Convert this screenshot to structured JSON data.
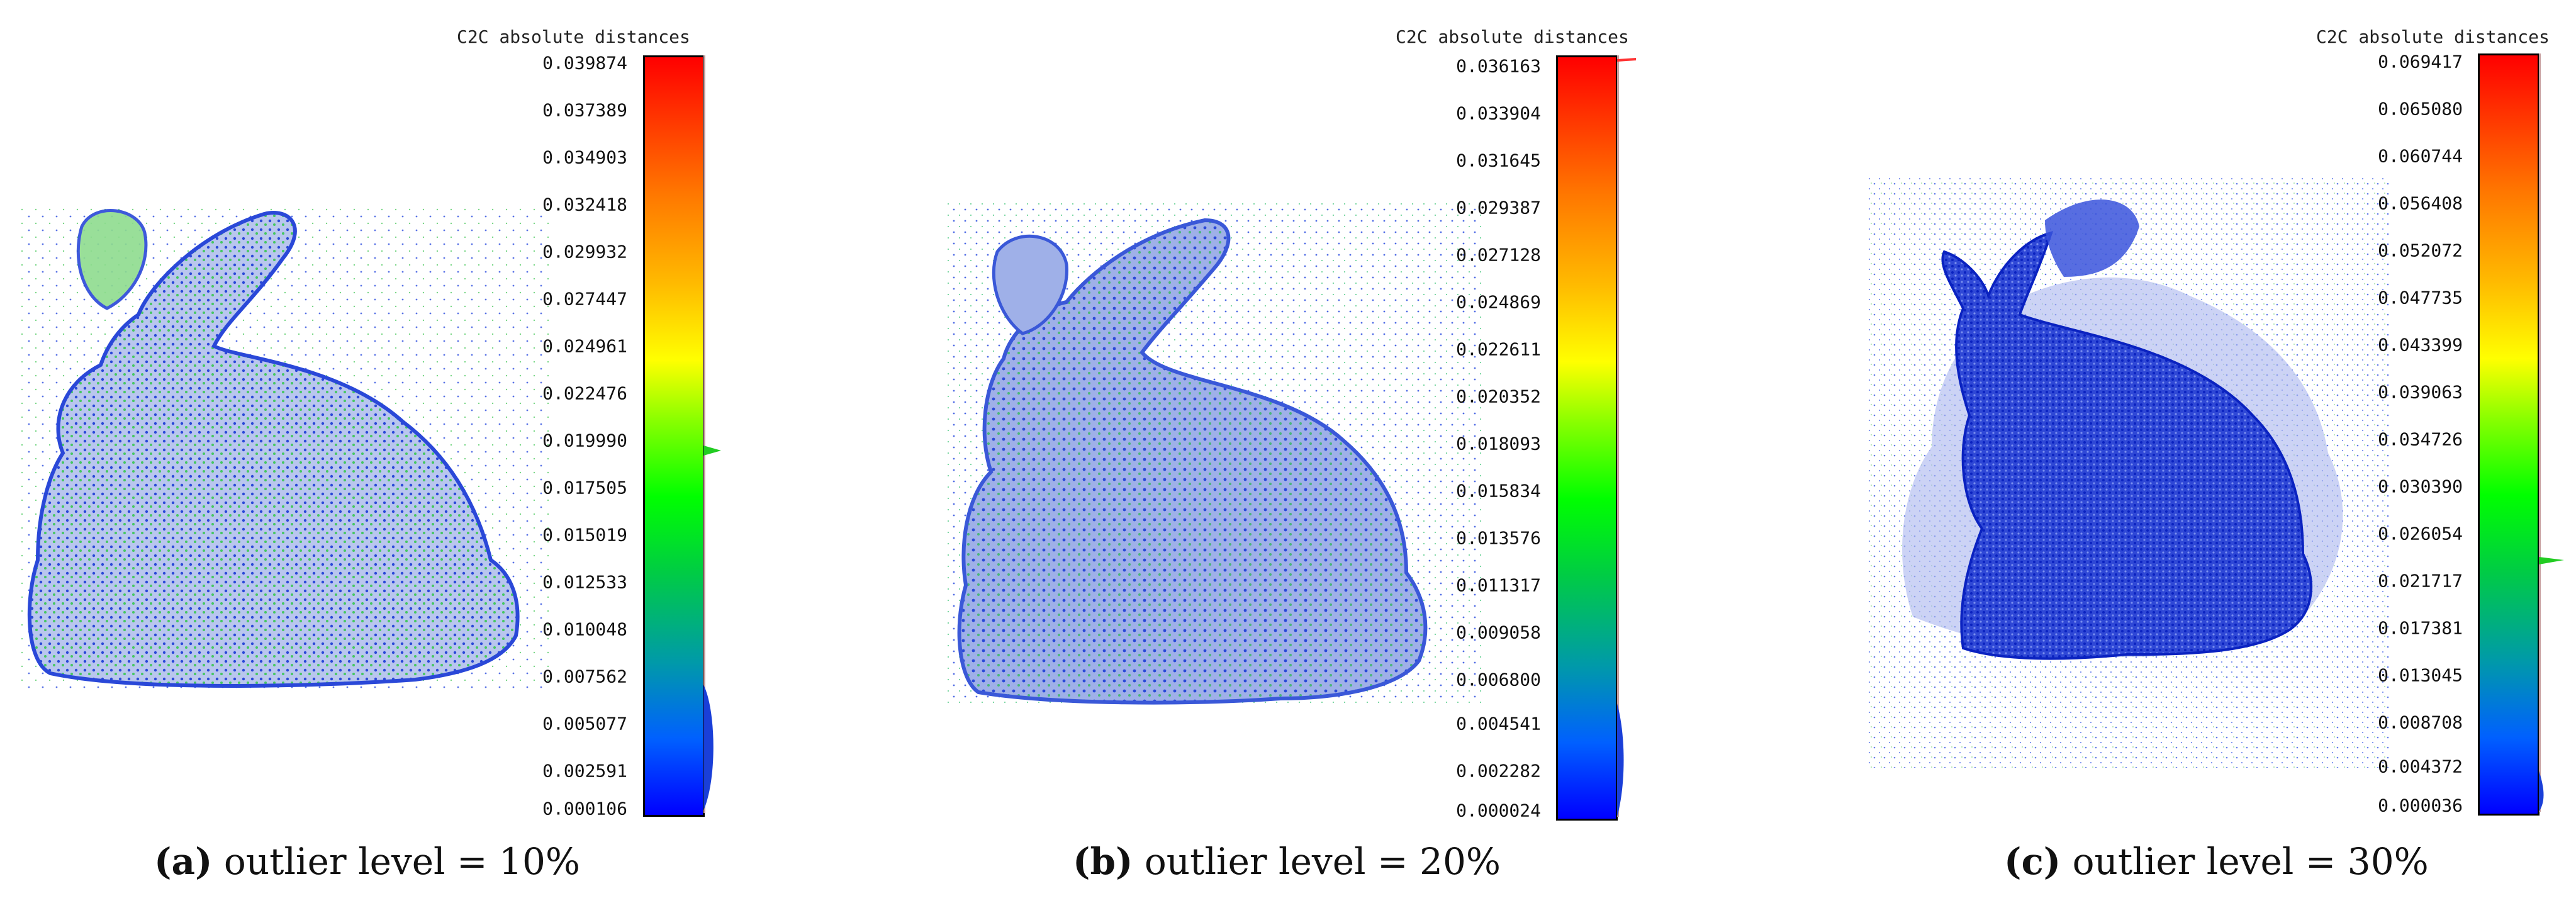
{
  "panels": [
    {
      "id": "a",
      "scale_title": "C2C absolute distances",
      "ticks": [
        "0.039874",
        "0.037389",
        "0.034903",
        "0.032418",
        "0.029932",
        "0.027447",
        "0.024961",
        "0.022476",
        "0.019990",
        "0.017505",
        "0.015019",
        "0.012533",
        "0.010048",
        "0.007562",
        "0.005077",
        "0.002591",
        "0.000106"
      ],
      "caption_letter": "(a)",
      "caption_text": " outlier level = 10%",
      "outlier_level_percent": 10,
      "hist_peak_color": "#22cc22"
    },
    {
      "id": "b",
      "scale_title": "C2C absolute distances",
      "ticks": [
        "0.036163",
        "0.033904",
        "0.031645",
        "0.029387",
        "0.027128",
        "0.024869",
        "0.022611",
        "0.020352",
        "0.018093",
        "0.015834",
        "0.013576",
        "0.011317",
        "0.009058",
        "0.006800",
        "0.004541",
        "0.002282",
        "0.000024"
      ],
      "caption_letter": "(b)",
      "caption_text": " outlier level = 20%",
      "outlier_level_percent": 20,
      "hist_peak_color": "#ff3333"
    },
    {
      "id": "c",
      "scale_title": "C2C absolute distances",
      "ticks": [
        "0.069417",
        "0.065080",
        "0.060744",
        "0.056408",
        "0.052072",
        "0.047735",
        "0.043399",
        "0.039063",
        "0.034726",
        "0.030390",
        "0.026054",
        "0.021717",
        "0.017381",
        "0.013045",
        "0.008708",
        "0.004372",
        "0.000036"
      ],
      "caption_letter": "(c)",
      "caption_text": " outlier level = 30%",
      "outlier_level_percent": 30,
      "hist_peak_color": "#22cc22"
    }
  ],
  "colors": {
    "cloud_blue": "#1a3fd8",
    "cloud_green": "#3cc850",
    "outlier_blue": "#3050e0"
  }
}
